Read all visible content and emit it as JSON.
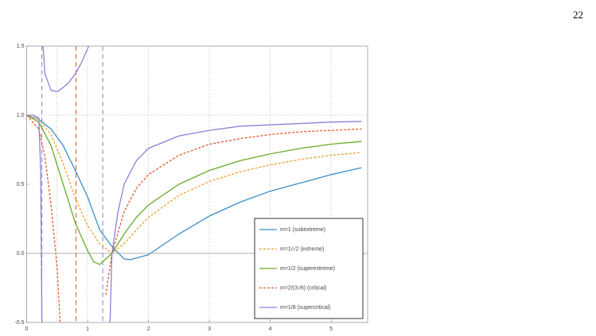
{
  "page_number": "22",
  "chart_data": {
    "type": "line",
    "xlim": [
      0,
      5.6
    ],
    "ylim": [
      -0.5,
      1.5
    ],
    "xticks": [
      0,
      1,
      2,
      3,
      4,
      5
    ],
    "yticks": [
      -0.5,
      {
        "value": 0,
        "label": "0.0"
      },
      0.5,
      {
        "value": 1,
        "label": "1.0"
      },
      1.5
    ],
    "x_gridlines": [
      0.5,
      1,
      2,
      3,
      4,
      5
    ],
    "y_gridlines": [
      1
    ],
    "vertical_lines": [
      {
        "x": 0.25,
        "color": "#8f7fd6"
      },
      {
        "x": 0.81,
        "color": "#e05a2b"
      },
      {
        "x": 1.25,
        "color": "#8f7fd6"
      }
    ],
    "series": [
      {
        "name": "m=1 (subextreme)",
        "color": "#3a8fc8",
        "dash": false,
        "x": [
          0,
          0.2,
          0.4,
          0.6,
          0.8,
          1.0,
          1.2,
          1.4,
          1.6,
          1.7,
          2.0,
          2.5,
          3.0,
          3.5,
          4.0,
          4.5,
          5.0,
          5.5
        ],
        "values": [
          1.0,
          0.97,
          0.9,
          0.78,
          0.6,
          0.41,
          0.17,
          0.05,
          -0.04,
          -0.045,
          -0.01,
          0.14,
          0.27,
          0.37,
          0.45,
          0.51,
          0.57,
          0.62
        ]
      },
      {
        "name": "m=1/√2 (extreme)",
        "color": "#f0a030",
        "dash": true,
        "x": [
          0,
          0.2,
          0.4,
          0.6,
          0.8,
          1.0,
          1.2,
          1.4,
          1.6,
          1.8,
          2.0,
          2.5,
          3.0,
          3.5,
          4.0,
          4.5,
          5.0,
          5.5
        ],
        "values": [
          1.0,
          0.97,
          0.86,
          0.65,
          0.4,
          0.2,
          0.07,
          0.0,
          0.07,
          0.17,
          0.26,
          0.42,
          0.52,
          0.59,
          0.64,
          0.68,
          0.71,
          0.73
        ]
      },
      {
        "name": "m=1/2 (superextreme)",
        "color": "#6aaa2a",
        "dash": false,
        "x": [
          0,
          0.2,
          0.4,
          0.6,
          0.8,
          1.0,
          1.1,
          1.2,
          1.3,
          1.4,
          1.6,
          1.8,
          2.0,
          2.5,
          3.0,
          3.5,
          4.0,
          4.5,
          5.0,
          5.5
        ],
        "values": [
          1.0,
          0.95,
          0.78,
          0.5,
          0.22,
          0.02,
          -0.06,
          -0.08,
          -0.04,
          0.0,
          0.14,
          0.26,
          0.35,
          0.5,
          0.6,
          0.67,
          0.72,
          0.76,
          0.79,
          0.81
        ]
      },
      {
        "name": "m=2/(3√6) (critical)",
        "color": "#e05a2b",
        "dash": true,
        "x": [
          0,
          0.2,
          0.3,
          0.4,
          0.5,
          0.55,
          1.0,
          1.3,
          1.4,
          1.6,
          1.8,
          2.0,
          2.5,
          3.0,
          3.5,
          4.0,
          4.5,
          5.0,
          5.5
        ],
        "values": [
          1.0,
          0.9,
          0.7,
          0.35,
          -0.1,
          -0.5,
          null,
          -0.3,
          0.0,
          0.3,
          0.47,
          0.57,
          0.71,
          0.79,
          0.83,
          0.86,
          0.88,
          0.89,
          0.9
        ]
      },
      {
        "name": "m=1/8 (supercritical)",
        "color": "#8f7fd6",
        "dash": false,
        "x": [
          0,
          0.1,
          0.2,
          0.23,
          0.25,
          0.26,
          0.27,
          0.3,
          0.4,
          0.5,
          0.6,
          0.7,
          0.8,
          0.9,
          1.0,
          1.02,
          1.3,
          1.37,
          1.4,
          1.5,
          1.6,
          1.8,
          2.0,
          2.5,
          3.0,
          3.5,
          4.0,
          4.5,
          5.0,
          5.5
        ],
        "values": [
          1.0,
          1.0,
          0.98,
          0.6,
          -0.5,
          null,
          1.5,
          1.3,
          1.18,
          1.17,
          1.2,
          1.24,
          1.3,
          1.38,
          1.48,
          1.5,
          null,
          -0.5,
          0.0,
          0.3,
          0.5,
          0.67,
          0.76,
          0.85,
          0.89,
          0.92,
          0.93,
          0.94,
          0.95,
          0.955
        ]
      }
    ]
  }
}
